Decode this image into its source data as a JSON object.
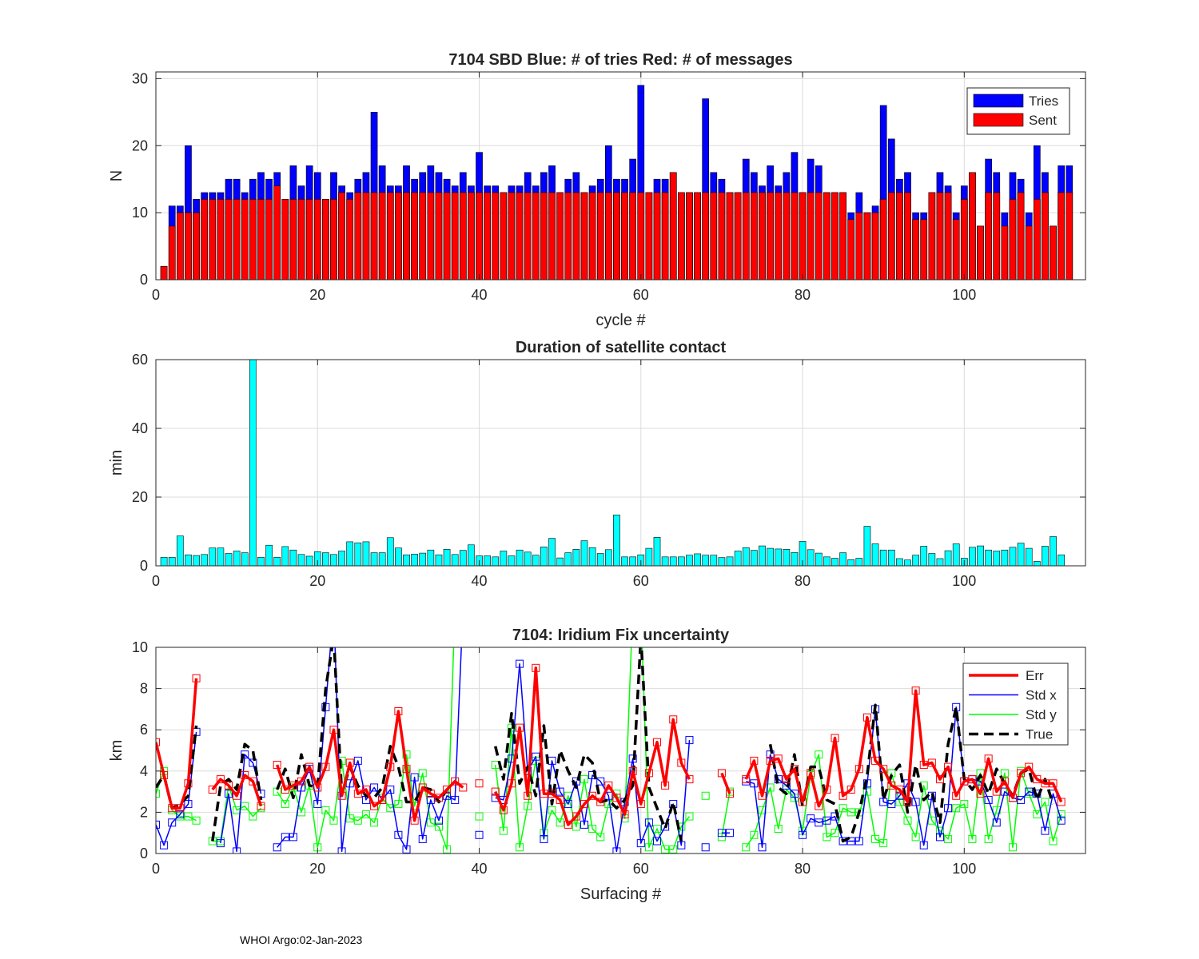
{
  "footer": "WHOI Argo:02-Jan-2023",
  "colors": {
    "tries": "#0000ff",
    "sent": "#ff0000",
    "duration": "#00ffff",
    "err": "#ff0000",
    "stdx": "#0000ff",
    "stdy": "#00ff00",
    "true": "#000000",
    "grid": "#dcdcdc",
    "axis": "#262626"
  },
  "chart_data": [
    {
      "type": "bar",
      "title": "7104 SBD  Blue: # of tries   Red: # of messages",
      "xlabel": "cycle #",
      "ylabel": "N",
      "xlim": [
        0,
        115
      ],
      "ylim": [
        0,
        31
      ],
      "xticks": [
        0,
        20,
        40,
        60,
        80,
        100
      ],
      "yticks": [
        0,
        10,
        20,
        30
      ],
      "legend": {
        "placement": "top-right",
        "entries": [
          "Tries",
          "Sent"
        ]
      },
      "x_start": 1,
      "series": [
        {
          "name": "Tries",
          "values": [
            2,
            11,
            11,
            20,
            12,
            13,
            13,
            13,
            15,
            15,
            13,
            15,
            16,
            15,
            16,
            12,
            17,
            14,
            17,
            16,
            12,
            16,
            14,
            13,
            15,
            16,
            25,
            17,
            14,
            14,
            17,
            15,
            16,
            17,
            16,
            15,
            14,
            16,
            14,
            19,
            14,
            14,
            13,
            14,
            14,
            16,
            14,
            16,
            17,
            13,
            15,
            16,
            13,
            14,
            15,
            20,
            15,
            15,
            18,
            29,
            13,
            15,
            15,
            16,
            13,
            13,
            13,
            27,
            16,
            15,
            13,
            13,
            18,
            16,
            14,
            17,
            14,
            16,
            19,
            13,
            18,
            17,
            13,
            13,
            13,
            10,
            13,
            10,
            11,
            26,
            21,
            15,
            16,
            10,
            10,
            13,
            16,
            14,
            10,
            14,
            16,
            8,
            18,
            16,
            10,
            16,
            15,
            10,
            20,
            16,
            8,
            17,
            17
          ]
        },
        {
          "name": "Sent",
          "values": [
            2,
            8,
            10,
            10,
            10,
            12,
            12,
            12,
            12,
            12,
            12,
            12,
            12,
            12,
            14,
            12,
            12,
            12,
            12,
            12,
            12,
            12,
            13,
            12,
            13,
            13,
            13,
            13,
            13,
            13,
            13,
            13,
            13,
            13,
            13,
            13,
            13,
            13,
            13,
            13,
            13,
            13,
            13,
            13,
            13,
            13,
            13,
            13,
            13,
            13,
            13,
            13,
            13,
            13,
            13,
            13,
            13,
            13,
            13,
            13,
            13,
            13,
            13,
            16,
            13,
            13,
            13,
            13,
            13,
            13,
            13,
            13,
            13,
            13,
            13,
            13,
            13,
            13,
            13,
            13,
            13,
            13,
            13,
            13,
            13,
            9,
            10,
            10,
            10,
            12,
            13,
            13,
            13,
            9,
            9,
            13,
            13,
            13,
            9,
            12,
            16,
            8,
            13,
            13,
            8,
            12,
            13,
            8,
            12,
            13,
            8,
            13,
            13
          ]
        }
      ]
    },
    {
      "type": "bar",
      "title": "Duration of satellite contact",
      "xlabel": "",
      "ylabel": "min",
      "xlim": [
        0,
        115
      ],
      "ylim": [
        0,
        60
      ],
      "xticks": [
        0,
        20,
        40,
        60,
        80,
        100
      ],
      "yticks": [
        0,
        20,
        40,
        60
      ],
      "x_start": 1,
      "series": [
        {
          "name": "Duration",
          "values": [
            2.5,
            2.5,
            8.7,
            3.2,
            3,
            3.3,
            5.2,
            5.2,
            3.6,
            4.3,
            3.8,
            60,
            2.5,
            6,
            2.5,
            5.6,
            4.6,
            3.3,
            2.8,
            4.1,
            3.8,
            3.3,
            4.3,
            7,
            6.7,
            7,
            3.8,
            3.8,
            8.2,
            5.2,
            3.2,
            3.4,
            3.7,
            4.6,
            3.2,
            4.8,
            3.3,
            4.5,
            6.1,
            2.9,
            2.9,
            2.6,
            4.3,
            2.9,
            4.6,
            4,
            3.1,
            5.5,
            8,
            2.3,
            3.8,
            4.8,
            7.3,
            5.3,
            3.6,
            4.7,
            14.8,
            2.6,
            2.6,
            3.2,
            5.1,
            8.3,
            2.6,
            2.6,
            2.6,
            3.1,
            3.5,
            3.1,
            3.1,
            2.4,
            2.6,
            4.3,
            5.3,
            4.5,
            5.8,
            5.1,
            4.9,
            4.8,
            3.9,
            7.1,
            4.7,
            3.7,
            2.6,
            2.2,
            3.8,
            1.8,
            2.2,
            11.5,
            6.4,
            4.6,
            4.6,
            2.1,
            1.7,
            3.1,
            5.7,
            3.6,
            2.1,
            4.4,
            6.4,
            2.2,
            5.4,
            5.8,
            4.6,
            4.3,
            4.6,
            5.4,
            6.6,
            5.1,
            1.3,
            5.7,
            8.5,
            3.2
          ]
        }
      ]
    },
    {
      "type": "line",
      "title": "7104: Iridium Fix uncertainty",
      "xlabel": "Surfacing #",
      "ylabel": "km",
      "xlim": [
        0,
        115
      ],
      "ylim": [
        0,
        10
      ],
      "xticks": [
        0,
        20,
        40,
        60,
        80,
        100
      ],
      "yticks": [
        0,
        2,
        4,
        6,
        8,
        10
      ],
      "legend": {
        "placement": "top-right",
        "entries": [
          "Err",
          "Std x",
          "Std y",
          "True"
        ]
      },
      "x": [
        0,
        1,
        2,
        3,
        4,
        5,
        6,
        7,
        8,
        9,
        10,
        11,
        12,
        13,
        14,
        15,
        16,
        17,
        18,
        19,
        20,
        21,
        22,
        23,
        24,
        25,
        26,
        27,
        28,
        29,
        30,
        31,
        32,
        33,
        34,
        35,
        36,
        37,
        38,
        39,
        40,
        41,
        42,
        43,
        44,
        45,
        46,
        47,
        48,
        49,
        50,
        51,
        52,
        53,
        54,
        55,
        56,
        57,
        58,
        59,
        60,
        61,
        62,
        63,
        64,
        65,
        66,
        67,
        68,
        69,
        70,
        71,
        72,
        73,
        74,
        75,
        76,
        77,
        78,
        79,
        80,
        81,
        82,
        83,
        84,
        85,
        86,
        87,
        88,
        89,
        90,
        91,
        92,
        93,
        94,
        95,
        96,
        97,
        98,
        99,
        100,
        101,
        102,
        103,
        104,
        105,
        106,
        107,
        108,
        109,
        110,
        111,
        112
      ],
      "series": [
        {
          "name": "Err",
          "values": [
            5.4,
            3.8,
            2.2,
            2.2,
            3.4,
            8.5,
            null,
            3.1,
            3.6,
            3.3,
            2.8,
            3.8,
            3.5,
            2.3,
            null,
            4.3,
            3.1,
            3.3,
            3.5,
            4.2,
            3.2,
            4.2,
            6,
            2.8,
            4.4,
            2.9,
            3.1,
            2.3,
            2.6,
            4.2,
            6.9,
            4.1,
            1.6,
            3.2,
            2.9,
            2.7,
            3.1,
            3.5,
            3.2,
            null,
            3.4,
            null,
            3,
            2.1,
            3.4,
            6.1,
            2.8,
            9,
            2.9,
            2.9,
            2.6,
            1.4,
            1.8,
            2.4,
            2.8,
            2.5,
            3.3,
            2.7,
            1.9,
            4,
            2.4,
            3.9,
            5.4,
            3.3,
            6.5,
            4.4,
            3.6,
            null,
            null,
            null,
            3.9,
            2.9,
            null,
            3.6,
            4.5,
            2.8,
            4.5,
            4.6,
            3.6,
            4.1,
            2.5,
            3.9,
            2.3,
            3.1,
            5.6,
            2.8,
            3.1,
            4.1,
            6.6,
            4.5,
            4.1,
            3.3,
            3.1,
            2.5,
            7.9,
            4.3,
            4.4,
            3.6,
            4.2,
            2.8,
            3.5,
            3.6,
            2.9,
            4.6,
            3,
            3.5,
            2.7,
            3.9,
            4.2,
            3.6,
            3.4,
            3.4,
            2.5
          ]
        },
        {
          "name": "Std x",
          "values": [
            1.4,
            0.4,
            1.5,
            1.9,
            2.4,
            5.9,
            null,
            null,
            0.5,
            2.9,
            0.1,
            4.8,
            4.4,
            2.9,
            null,
            0.3,
            0.8,
            0.8,
            3.2,
            4.1,
            2.4,
            7.1,
            12,
            0.1,
            3.4,
            4.5,
            2.6,
            3.2,
            2.6,
            3.1,
            0.9,
            0.2,
            3.7,
            0.7,
            2.6,
            1.6,
            2.8,
            2.6,
            12,
            null,
            0.9,
            null,
            2.7,
            2.6,
            4.6,
            9.2,
            4,
            4.7,
            0.7,
            4.5,
            3,
            2.4,
            3.5,
            1.4,
            3.8,
            3.5,
            2.8,
            0.1,
            2.5,
            4.6,
            0.5,
            1.5,
            0.6,
            1.3,
            2.4,
            0.4,
            5.5,
            null,
            0.3,
            null,
            1,
            1,
            null,
            3.5,
            3.4,
            0.3,
            4.8,
            3.6,
            3.3,
            2.9,
            0.9,
            1.7,
            1.5,
            1.6,
            1.8,
            0.6,
            0.6,
            0.6,
            3.4,
            7,
            2.5,
            2.4,
            2.8,
            3.4,
            2.5,
            0.4,
            2.8,
            0.8,
            2.2,
            7.1,
            3.5,
            3.6,
            3.5,
            2.6,
            1.5,
            3,
            2.7,
            2.6,
            3,
            2.9,
            1.1,
            2.9,
            1.6
          ]
        },
        {
          "name": "Std y",
          "values": [
            2.9,
            4,
            2.1,
            1.8,
            1.8,
            1.6,
            null,
            0.6,
            0.6,
            3.3,
            2.1,
            2.3,
            1.8,
            2.2,
            null,
            3,
            2.4,
            3.2,
            2,
            3.3,
            0.3,
            2.1,
            1.6,
            4.5,
            1.7,
            1.6,
            1.9,
            1.5,
            2.7,
            2.2,
            2.4,
            4.8,
            2.3,
            3.9,
            1.5,
            1.3,
            0.2,
            12,
            null,
            null,
            1.8,
            null,
            4.3,
            1.1,
            6.1,
            0.3,
            2.3,
            4.5,
            1,
            2.1,
            1.5,
            2.8,
            1.3,
            3.6,
            1.2,
            0.8,
            2.4,
            2.9,
            1.7,
            12,
            12,
            0.3,
            1.2,
            0.2,
            0.2,
            1.3,
            1.8,
            null,
            2.8,
            null,
            0.8,
            3,
            null,
            0.3,
            0.9,
            2.1,
            3.2,
            1.2,
            3.1,
            2.7,
            1.1,
            3.8,
            4.8,
            0.8,
            1,
            2.2,
            2,
            2,
            3,
            0.7,
            0.5,
            3.9,
            2.5,
            1.6,
            0.8,
            3.3,
            1.6,
            1.1,
            0.7,
            2.2,
            2.4,
            0.7,
            3.9,
            0.7,
            2.1,
            3.9,
            0.3,
            4,
            2.9,
            1.9,
            2.5,
            0.6,
            1.9
          ]
        },
        {
          "name": "True",
          "values": [
            3.2,
            3.8,
            2.2,
            2.4,
            2.8,
            6.2,
            null,
            0.6,
            3.3,
            3.6,
            3.1,
            5.3,
            5,
            2.6,
            null,
            3.1,
            4.1,
            2.7,
            4.8,
            3.3,
            3.2,
            8,
            10.5,
            2.9,
            4.2,
            3.3,
            2.8,
            2.7,
            3.2,
            5.2,
            4.2,
            2.5,
            2.5,
            3.2,
            3.1,
            2.5,
            3.1,
            null,
            null,
            null,
            null,
            null,
            5.2,
            3.6,
            6.8,
            3.4,
            4.2,
            2.8,
            6.2,
            2.4,
            5,
            4,
            3.2,
            4.8,
            4.4,
            2.5,
            2.6,
            2.2,
            2.6,
            3.3,
            10.5,
            3.2,
            2.2,
            1.2,
            2.5,
            0.6,
            null,
            null,
            null,
            null,
            null,
            null,
            null,
            null,
            null,
            null,
            5.3,
            3.2,
            2.9,
            4.8,
            2.3,
            4.2,
            4.2,
            2.6,
            2.4,
            0.6,
            0.8,
            2,
            3.8,
            7.2,
            2.6,
            3.8,
            4.3,
            2,
            4.3,
            2.6,
            3,
            1.5,
            5.3,
            7.1,
            3.6,
            3.1,
            3.8,
            2.9,
            4.1,
            3.4,
            2.8,
            3.9,
            4.1,
            2.6,
            3.6,
            2.4,
            null
          ]
        }
      ]
    }
  ]
}
